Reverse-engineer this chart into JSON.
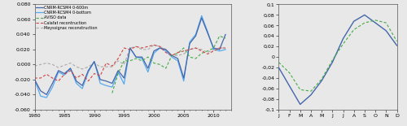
{
  "left_ylim": [
    -0.06,
    0.08
  ],
  "left_yticks": [
    -0.06,
    -0.04,
    -0.02,
    0.0,
    0.02,
    0.04,
    0.06,
    0.08
  ],
  "left_xlim": [
    1980,
    2013
  ],
  "left_xticks": [
    1980,
    1985,
    1990,
    1995,
    2000,
    2005,
    2010
  ],
  "right_ylim": [
    -0.1,
    0.1
  ],
  "right_yticks": [
    -0.1,
    -0.08,
    -0.06,
    -0.04,
    -0.02,
    0,
    0.02,
    0.04,
    0.06,
    0.08,
    0.1
  ],
  "right_months": [
    "J",
    "F",
    "M",
    "A",
    "M",
    "J",
    "J",
    "A",
    "S",
    "O",
    "N",
    "D"
  ],
  "color_cnrm600": "#4466aa",
  "color_cnrmbottom": "#55aaee",
  "color_aviso": "#44aa44",
  "color_calafat": "#cc4444",
  "color_meyssignac": "#aaaaaa",
  "legend_labels": [
    "CNRM-RCSM4 0-600m",
    "CNRM-RCSM4 0-bottom",
    "AVISO data",
    "Calafat recontruction",
    "Meyssignac reconstruction"
  ],
  "bg_color": "#e8e8e8"
}
